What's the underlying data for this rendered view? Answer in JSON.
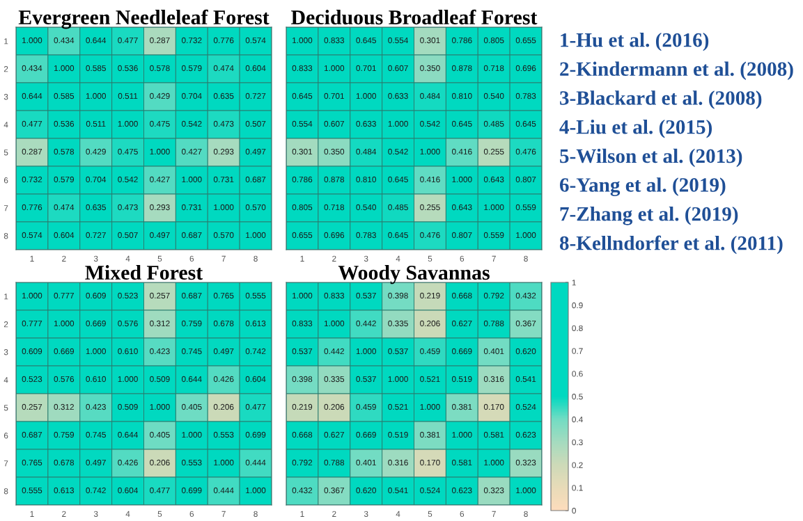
{
  "chart_data": [
    {
      "type": "heatmap",
      "title": "Evergreen Needleleaf Forest",
      "categories": [
        "1",
        "2",
        "3",
        "4",
        "5",
        "6",
        "7",
        "8"
      ],
      "y_categories": [
        "1",
        "2",
        "3",
        "4",
        "5",
        "6",
        "7",
        "8"
      ],
      "cells": [
        [
          1.0,
          0.434,
          0.644,
          0.477,
          0.287,
          0.732,
          0.776,
          0.574
        ],
        [
          0.434,
          1.0,
          0.585,
          0.536,
          0.578,
          0.579,
          0.474,
          0.604
        ],
        [
          0.644,
          0.585,
          1.0,
          0.511,
          0.429,
          0.704,
          0.635,
          0.727
        ],
        [
          0.477,
          0.536,
          0.511,
          1.0,
          0.475,
          0.542,
          0.473,
          0.507
        ],
        [
          0.287,
          0.578,
          0.429,
          0.475,
          1.0,
          0.427,
          0.293,
          0.497
        ],
        [
          0.732,
          0.579,
          0.704,
          0.542,
          0.427,
          1.0,
          0.731,
          0.687
        ],
        [
          0.776,
          0.474,
          0.635,
          0.473,
          0.293,
          0.731,
          1.0,
          0.57
        ],
        [
          0.574,
          0.604,
          0.727,
          0.507,
          0.497,
          0.687,
          0.57,
          1.0
        ]
      ],
      "cell_labels": [
        [
          "1.000",
          "0.434",
          "0.644",
          "0.477",
          "0.287",
          "0.732",
          "0.776",
          "0.574"
        ],
        [
          "0.434",
          "1.000",
          "0.585",
          "0.536",
          "0.578",
          "0.579",
          "0.474",
          "0.604"
        ],
        [
          "0.644",
          "0.585",
          "1.000",
          "0.511",
          "0.429",
          "0.704",
          "0.635",
          "0.727"
        ],
        [
          "0.477",
          "0.536",
          "0.511",
          "1.000",
          "0.475",
          "0.542",
          "0.473",
          "0.507"
        ],
        [
          "0.287",
          "0.578",
          "0.429",
          "0.475",
          "1.000",
          "0.427",
          "0.293",
          "0.497"
        ],
        [
          "0.732",
          "0.579",
          "0.704",
          "0.542",
          "0.427",
          "1.000",
          "0.731",
          "0.687"
        ],
        [
          "0.776",
          "0.474",
          "0.635",
          "0.473",
          "0.293",
          "0.731",
          "1.000",
          "0.570"
        ],
        [
          "0.574",
          "0.604",
          "0.727",
          "0.507",
          "0.497",
          "0.687",
          "0.570",
          "1.000"
        ]
      ]
    },
    {
      "type": "heatmap",
      "title": "Deciduous Broadleaf Forest",
      "categories": [
        "1",
        "2",
        "3",
        "4",
        "5",
        "6",
        "7",
        "8"
      ],
      "y_categories": [
        "1",
        "2",
        "3",
        "4",
        "5",
        "6",
        "7",
        "8"
      ],
      "tick_labels": "x",
      "cells": [
        [
          1.0,
          0.833,
          0.645,
          0.554,
          0.301,
          0.786,
          0.805,
          0.655
        ],
        [
          0.833,
          1.0,
          0.701,
          0.607,
          0.35,
          0.878,
          0.718,
          0.696
        ],
        [
          0.645,
          0.701,
          1.0,
          0.633,
          0.484,
          0.81,
          0.54,
          0.783
        ],
        [
          0.554,
          0.607,
          0.633,
          1.0,
          0.542,
          0.645,
          0.485,
          0.645
        ],
        [
          0.301,
          0.35,
          0.484,
          0.542,
          1.0,
          0.416,
          0.255,
          0.476
        ],
        [
          0.786,
          0.878,
          0.81,
          0.645,
          0.416,
          1.0,
          0.643,
          0.807
        ],
        [
          0.805,
          0.718,
          0.54,
          0.485,
          0.255,
          0.643,
          1.0,
          0.559
        ],
        [
          0.655,
          0.696,
          0.783,
          0.645,
          0.476,
          0.807,
          0.559,
          1.0
        ]
      ],
      "cell_labels": [
        [
          "1.000",
          "0.833",
          "0.645",
          "0.554",
          "0.301",
          "0.786",
          "0.805",
          "0.655"
        ],
        [
          "0.833",
          "1.000",
          "0.701",
          "0.607",
          "0.350",
          "0.878",
          "0.718",
          "0.696"
        ],
        [
          "0.645",
          "0.701",
          "1.000",
          "0.633",
          "0.484",
          "0.810",
          "0.540",
          "0.783"
        ],
        [
          "0.554",
          "0.607",
          "0.633",
          "1.000",
          "0.542",
          "0.645",
          "0.485",
          "0.645"
        ],
        [
          "0.301",
          "0.350",
          "0.484",
          "0.542",
          "1.000",
          "0.416",
          "0.255",
          "0.476"
        ],
        [
          "0.786",
          "0.878",
          "0.810",
          "0.645",
          "0.416",
          "1.000",
          "0.643",
          "0.807"
        ],
        [
          "0.805",
          "0.718",
          "0.540",
          "0.485",
          "0.255",
          "0.643",
          "1.000",
          "0.559"
        ],
        [
          "0.655",
          "0.696",
          "0.783",
          "0.645",
          "0.476",
          "0.807",
          "0.559",
          "1.000"
        ]
      ],
      "annotations": [
        "1-Hu et al. (2016)",
        "2-Kindermann et al. (2008)",
        "3-Blackard et al. (2008)",
        "4-Liu et al. (2015)",
        "5-Wilson et al. (2013)",
        "6-Yang et al. (2019)",
        "7-Zhang et al. (2019)",
        "8-Kellndorfer et al. (2011)"
      ]
    },
    {
      "type": "heatmap",
      "title": "Mixed Forest",
      "categories": [
        "1",
        "2",
        "3",
        "4",
        "5",
        "6",
        "7",
        "8"
      ],
      "y_categories": [
        "1",
        "2",
        "3",
        "4",
        "5",
        "6",
        "7",
        "8"
      ],
      "cells": [
        [
          1.0,
          0.777,
          0.609,
          0.523,
          0.257,
          0.687,
          0.765,
          0.555
        ],
        [
          0.777,
          1.0,
          0.669,
          0.576,
          0.312,
          0.759,
          0.678,
          0.613
        ],
        [
          0.609,
          0.669,
          1.0,
          0.61,
          0.423,
          0.745,
          0.497,
          0.742
        ],
        [
          0.523,
          0.576,
          0.61,
          1.0,
          0.509,
          0.644,
          0.426,
          0.604
        ],
        [
          0.257,
          0.312,
          0.423,
          0.509,
          1.0,
          0.405,
          0.206,
          0.477
        ],
        [
          0.687,
          0.759,
          0.745,
          0.644,
          0.405,
          1.0,
          0.553,
          0.699
        ],
        [
          0.765,
          0.678,
          0.497,
          0.426,
          0.206,
          0.553,
          1.0,
          0.444
        ],
        [
          0.555,
          0.613,
          0.742,
          0.604,
          0.477,
          0.699,
          0.444,
          1.0
        ]
      ],
      "cell_labels": [
        [
          "1.000",
          "0.777",
          "0.609",
          "0.523",
          "0.257",
          "0.687",
          "0.765",
          "0.555"
        ],
        [
          "0.777",
          "1.000",
          "0.669",
          "0.576",
          "0.312",
          "0.759",
          "0.678",
          "0.613"
        ],
        [
          "0.609",
          "0.669",
          "1.000",
          "0.610",
          "0.423",
          "0.745",
          "0.497",
          "0.742"
        ],
        [
          "0.523",
          "0.576",
          "0.610",
          "1.000",
          "0.509",
          "0.644",
          "0.426",
          "0.604"
        ],
        [
          "0.257",
          "0.312",
          "0.423",
          "0.509",
          "1.000",
          "0.405",
          "0.206",
          "0.477"
        ],
        [
          "0.687",
          "0.759",
          "0.745",
          "0.644",
          "0.405",
          "1.000",
          "0.553",
          "0.699"
        ],
        [
          "0.765",
          "0.678",
          "0.497",
          "0.426",
          "0.206",
          "0.553",
          "1.000",
          "0.444"
        ],
        [
          "0.555",
          "0.613",
          "0.742",
          "0.604",
          "0.477",
          "0.699",
          "0.444",
          "1.000"
        ]
      ]
    },
    {
      "type": "heatmap",
      "title": "Woody Savannas",
      "categories": [
        "1",
        "2",
        "3",
        "4",
        "5",
        "6",
        "7",
        "8"
      ],
      "y_categories": [
        "1",
        "2",
        "3",
        "4",
        "5",
        "6",
        "7",
        "8"
      ],
      "tick_labels": "x",
      "cells": [
        [
          1.0,
          0.833,
          0.537,
          0.398,
          0.219,
          0.668,
          0.792,
          0.432
        ],
        [
          0.833,
          1.0,
          0.442,
          0.335,
          0.206,
          0.627,
          0.788,
          0.367
        ],
        [
          0.537,
          0.442,
          1.0,
          0.537,
          0.459,
          0.669,
          0.401,
          0.62
        ],
        [
          0.398,
          0.335,
          0.537,
          1.0,
          0.521,
          0.519,
          0.316,
          0.541
        ],
        [
          0.219,
          0.206,
          0.459,
          0.521,
          1.0,
          0.381,
          0.17,
          0.524
        ],
        [
          0.668,
          0.627,
          0.669,
          0.519,
          0.381,
          1.0,
          0.581,
          0.623
        ],
        [
          0.792,
          0.788,
          0.401,
          0.316,
          0.17,
          0.581,
          1.0,
          0.323
        ],
        [
          0.432,
          0.367,
          0.62,
          0.541,
          0.524,
          0.623,
          0.323,
          1.0
        ]
      ],
      "cell_labels": [
        [
          "1.000",
          "0.833",
          "0.537",
          "0.398",
          "0.219",
          "0.668",
          "0.792",
          "0.432"
        ],
        [
          "0.833",
          "1.000",
          "0.442",
          "0.335",
          "0.206",
          "0.627",
          "0.788",
          "0.367"
        ],
        [
          "0.537",
          "0.442",
          "1.000",
          "0.537",
          "0.459",
          "0.669",
          "0.401",
          "0.620"
        ],
        [
          "0.398",
          "0.335",
          "0.537",
          "1.000",
          "0.521",
          "0.519",
          "0.316",
          "0.541"
        ],
        [
          "0.219",
          "0.206",
          "0.459",
          "0.521",
          "1.000",
          "0.381",
          "0.170",
          "0.524"
        ],
        [
          "0.668",
          "0.627",
          "0.669",
          "0.519",
          "0.381",
          "1.000",
          "0.581",
          "0.623"
        ],
        [
          "0.792",
          "0.788",
          "0.401",
          "0.316",
          "0.170",
          "0.581",
          "1.000",
          "0.323"
        ],
        [
          "0.432",
          "0.367",
          "0.620",
          "0.541",
          "0.524",
          "0.623",
          "0.323",
          "1.000"
        ]
      ],
      "clim": [
        0,
        1
      ],
      "cticks": [
        0,
        0.1,
        0.2,
        0.3,
        0.4,
        0.5,
        0.6,
        0.7,
        0.8,
        0.9,
        1
      ]
    }
  ]
}
